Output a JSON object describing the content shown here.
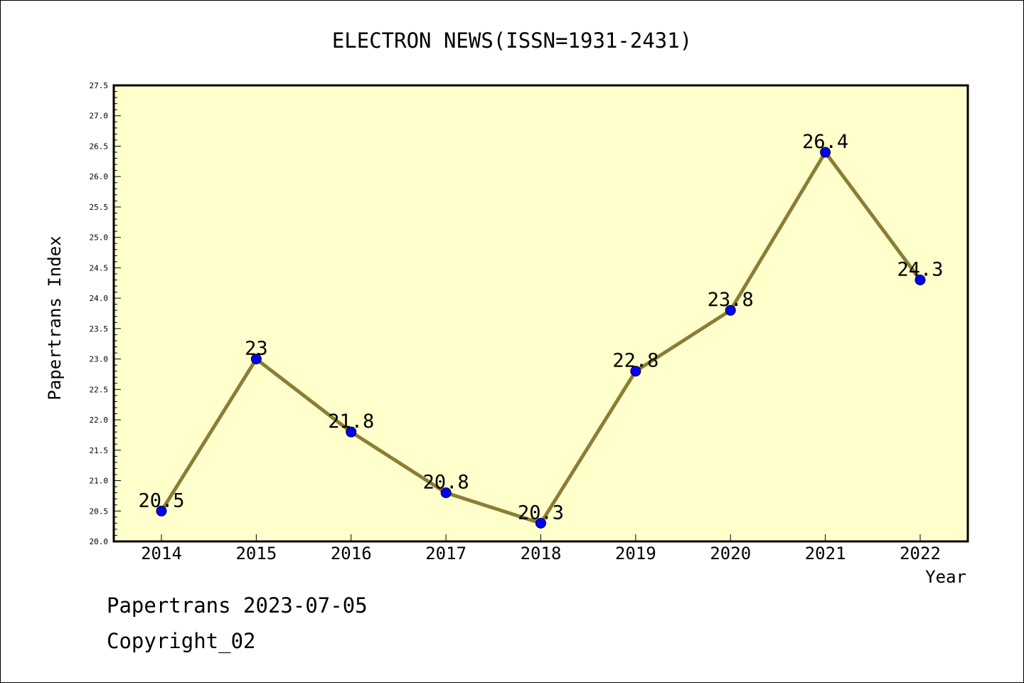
{
  "footer": {
    "line1": "Papertrans 2023-07-05",
    "line2": "Copyright_02"
  },
  "chart_data": {
    "type": "line",
    "title": "ELECTRON NEWS(ISSN=1931-2431)",
    "xlabel": "Year",
    "ylabel": "Papertrans Index",
    "categories": [
      "2014",
      "2015",
      "2016",
      "2017",
      "2018",
      "2019",
      "2020",
      "2021",
      "2022"
    ],
    "series": [
      {
        "values": [
          20.5,
          23,
          21.8,
          20.8,
          20.3,
          22.8,
          23.8,
          26.4,
          24.3
        ],
        "labels": [
          "20.5",
          "23",
          "21.8",
          "20.8",
          "20.3",
          "22.8",
          "23.8",
          "26.4",
          "24.3"
        ]
      }
    ],
    "ylim": [
      20.0,
      27.5
    ],
    "yticks": [
      "20.0",
      "20.5",
      "21.0",
      "21.5",
      "22.0",
      "22.5",
      "23.0",
      "23.5",
      "24.0",
      "24.5",
      "25.0",
      "25.5",
      "26.0",
      "26.5",
      "27.0",
      "27.5"
    ],
    "grid": false,
    "colors": {
      "plot_background": "#ffffcc",
      "line": "#8b7d35",
      "marker": "#0000ff"
    }
  }
}
